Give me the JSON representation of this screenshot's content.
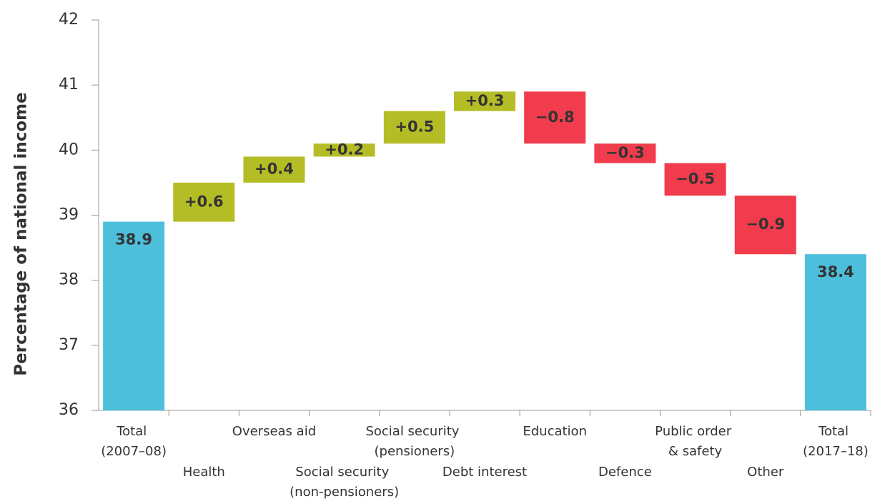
{
  "chart_data": {
    "type": "waterfall",
    "ylabel": "Percentage of national income",
    "categories": [
      "Total\n(2007–08)",
      "Health",
      "Overseas aid",
      "Social security\n(non-pensioners)",
      "Social security\n(pensioners)",
      "Debt interest",
      "Education",
      "Defence",
      "Public order\n& safety",
      "Other",
      "Total\n(2017–18)"
    ],
    "values": [
      38.9,
      0.6,
      0.4,
      0.2,
      0.5,
      0.3,
      -0.8,
      -0.3,
      -0.5,
      -0.9,
      38.4
    ],
    "value_labels": [
      "38.9",
      "+0.6",
      "+0.4",
      "+0.2",
      "+0.5",
      "+0.3",
      "−0.8",
      "−0.3",
      "−0.5",
      "−0.9",
      "38.4"
    ],
    "colors": [
      "#4dbfdb",
      "#b5bd26",
      "#b5bd26",
      "#b5bd26",
      "#b5bd26",
      "#b5bd26",
      "#f03c4c",
      "#f03c4c",
      "#f03c4c",
      "#f03c4c",
      "#4dbfdb"
    ],
    "ylim": [
      36,
      42
    ],
    "yticks": [
      36,
      37,
      38,
      39,
      40,
      41,
      42
    ]
  }
}
